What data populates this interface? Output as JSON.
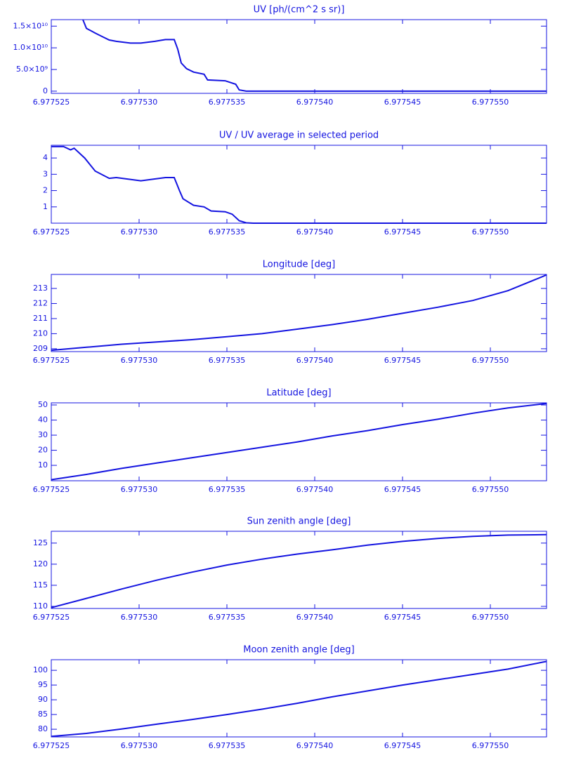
{
  "chart_data": [
    {
      "type": "line",
      "title": "UV [ph/(cm^2 s sr)]",
      "color": "#1414e0",
      "x": [
        6.9775268,
        6.977527,
        6.9775275,
        6.9775279,
        6.9775283,
        6.9775287,
        6.9775295,
        6.9775301,
        6.9775309,
        6.9775315,
        6.977532,
        6.9775322,
        6.9775324,
        6.9775327,
        6.9775331,
        6.9775337,
        6.9775339,
        6.9775349,
        6.9775355,
        6.9775357,
        6.9775361,
        6.9775532
      ],
      "values": [
        16500000000,
        14500000000,
        13400000000,
        12600000000,
        11800000000,
        11500000000,
        11100000000,
        11100000000,
        11500000000,
        11900000000,
        11900000000,
        9700000000,
        6500000000,
        5200000000,
        4400000000,
        3900000000,
        2600000000,
        2400000000,
        1600000000,
        300000000,
        0,
        0
      ],
      "xlim": [
        6.977525,
        6.9775532
      ],
      "ylim": [
        -500000000,
        16500000000
      ],
      "xticks": [
        6.977525,
        {
          "value": 6.97753,
          "label": "6.977530"
        },
        6.977535,
        {
          "value": 6.97754,
          "label": "6.977540"
        },
        6.977545,
        {
          "value": 6.97755,
          "label": "6.977550"
        }
      ],
      "yticks": [
        0,
        {
          "value": 5000000000,
          "label": "5.0×10⁹"
        },
        {
          "value": 10000000000,
          "label": "1.0×10¹⁰"
        },
        {
          "value": 15000000000,
          "label": "1.5×10¹⁰"
        }
      ]
    },
    {
      "type": "line",
      "title": "UV / UV average in selected period",
      "color": "#1414e0",
      "x": [
        6.977525,
        6.9775257,
        6.9775261,
        6.9775263,
        6.9775269,
        6.9775275,
        6.9775283,
        6.9775287,
        6.9775301,
        6.9775315,
        6.977532,
        6.9775323,
        6.9775325,
        6.9775331,
        6.9775337,
        6.9775341,
        6.9775349,
        6.9775353,
        6.9775357,
        6.9775361,
        6.9775365,
        6.9775532
      ],
      "values": [
        4.7,
        4.7,
        4.5,
        4.6,
        4.0,
        3.2,
        2.75,
        2.8,
        2.6,
        2.8,
        2.8,
        2.0,
        1.5,
        1.1,
        1.0,
        0.75,
        0.7,
        0.55,
        0.15,
        0.02,
        0,
        0
      ],
      "xlim": [
        6.977525,
        6.9775532
      ],
      "ylim": [
        0,
        4.78
      ],
      "xticks": [
        6.977525,
        {
          "value": 6.97753,
          "label": "6.977530"
        },
        6.977535,
        {
          "value": 6.97754,
          "label": "6.977540"
        },
        6.977545,
        {
          "value": 6.97755,
          "label": "6.977550"
        }
      ],
      "yticks": [
        1,
        2,
        3,
        4
      ]
    },
    {
      "type": "line",
      "title": "Longitude [deg]",
      "color": "#1414e0",
      "x": [
        6.977525,
        6.977527,
        6.977529,
        6.977531,
        6.977533,
        6.977535,
        6.977537,
        6.977539,
        6.977541,
        6.977543,
        6.977545,
        6.977547,
        6.977549,
        6.977551,
        6.977553,
        6.9775532
      ],
      "values": [
        208.9,
        209.1,
        209.3,
        209.45,
        209.6,
        209.8,
        210.0,
        210.3,
        210.6,
        210.95,
        211.35,
        211.75,
        212.2,
        212.85,
        213.8,
        213.9
      ],
      "xlim": [
        6.977525,
        6.9775532
      ],
      "ylim": [
        208.81,
        213.93
      ],
      "xticks": [
        6.977525,
        {
          "value": 6.97753,
          "label": "6.977530"
        },
        6.977535,
        {
          "value": 6.97754,
          "label": "6.977540"
        },
        6.977545,
        {
          "value": 6.97755,
          "label": "6.977550"
        }
      ],
      "yticks": [
        209,
        210,
        211,
        212,
        213
      ]
    },
    {
      "type": "line",
      "title": "Latitude [deg]",
      "color": "#1414e0",
      "x": [
        6.977525,
        6.977527,
        6.977529,
        6.977531,
        6.977533,
        6.977535,
        6.977537,
        6.977539,
        6.977541,
        6.977543,
        6.977545,
        6.977547,
        6.977549,
        6.977551,
        6.9775532
      ],
      "values": [
        0.5,
        4,
        8,
        11.5,
        15,
        18.5,
        22,
        25.5,
        29.5,
        33,
        37,
        40.5,
        44.5,
        48,
        51
      ],
      "xlim": [
        6.977525,
        6.9775532
      ],
      "ylim": [
        -0.2,
        51.4
      ],
      "xticks": [
        6.977525,
        {
          "value": 6.97753,
          "label": "6.977530"
        },
        6.977535,
        {
          "value": 6.97754,
          "label": "6.977540"
        },
        6.977545,
        {
          "value": 6.97755,
          "label": "6.977550"
        }
      ],
      "yticks": [
        10,
        20,
        30,
        40,
        50
      ]
    },
    {
      "type": "line",
      "title": "Sun zenith angle [deg]",
      "color": "#1414e0",
      "x": [
        6.977525,
        6.977527,
        6.977529,
        6.977531,
        6.977533,
        6.977535,
        6.977537,
        6.977539,
        6.977541,
        6.977543,
        6.977545,
        6.977547,
        6.977549,
        6.977551,
        6.9775532
      ],
      "values": [
        109.7,
        111.9,
        114.1,
        116.2,
        118.1,
        119.8,
        121.2,
        122.4,
        123.4,
        124.5,
        125.4,
        126.1,
        126.6,
        126.9,
        127
      ],
      "xlim": [
        6.977525,
        6.9775532
      ],
      "ylim": [
        109.5,
        127.8
      ],
      "xticks": [
        6.977525,
        {
          "value": 6.97753,
          "label": "6.977530"
        },
        6.977535,
        {
          "value": 6.97754,
          "label": "6.977540"
        },
        6.977545,
        {
          "value": 6.97755,
          "label": "6.977550"
        }
      ],
      "yticks": [
        110,
        115,
        120,
        125
      ]
    },
    {
      "type": "line",
      "title": "Moon zenith angle [deg]",
      "color": "#1414e0",
      "x": [
        6.977525,
        6.977527,
        6.977529,
        6.977531,
        6.977533,
        6.977535,
        6.977537,
        6.977539,
        6.977541,
        6.977543,
        6.977545,
        6.977547,
        6.977549,
        6.977551,
        6.977553,
        6.9775532
      ],
      "values": [
        77.6,
        78.6,
        80.1,
        81.7,
        83.3,
        85.0,
        86.8,
        88.8,
        91.0,
        93.0,
        95.0,
        96.8,
        98.6,
        100.4,
        102.8,
        103
      ],
      "xlim": [
        6.977525,
        6.9775532
      ],
      "ylim": [
        77.4,
        103.6
      ],
      "xticks": [
        6.977525,
        {
          "value": 6.97753,
          "label": "6.977530"
        },
        6.977535,
        {
          "value": 6.97754,
          "label": "6.977540"
        },
        6.977545,
        {
          "value": 6.97755,
          "label": "6.977550"
        }
      ],
      "yticks": [
        80,
        85,
        90,
        95,
        100
      ]
    }
  ]
}
